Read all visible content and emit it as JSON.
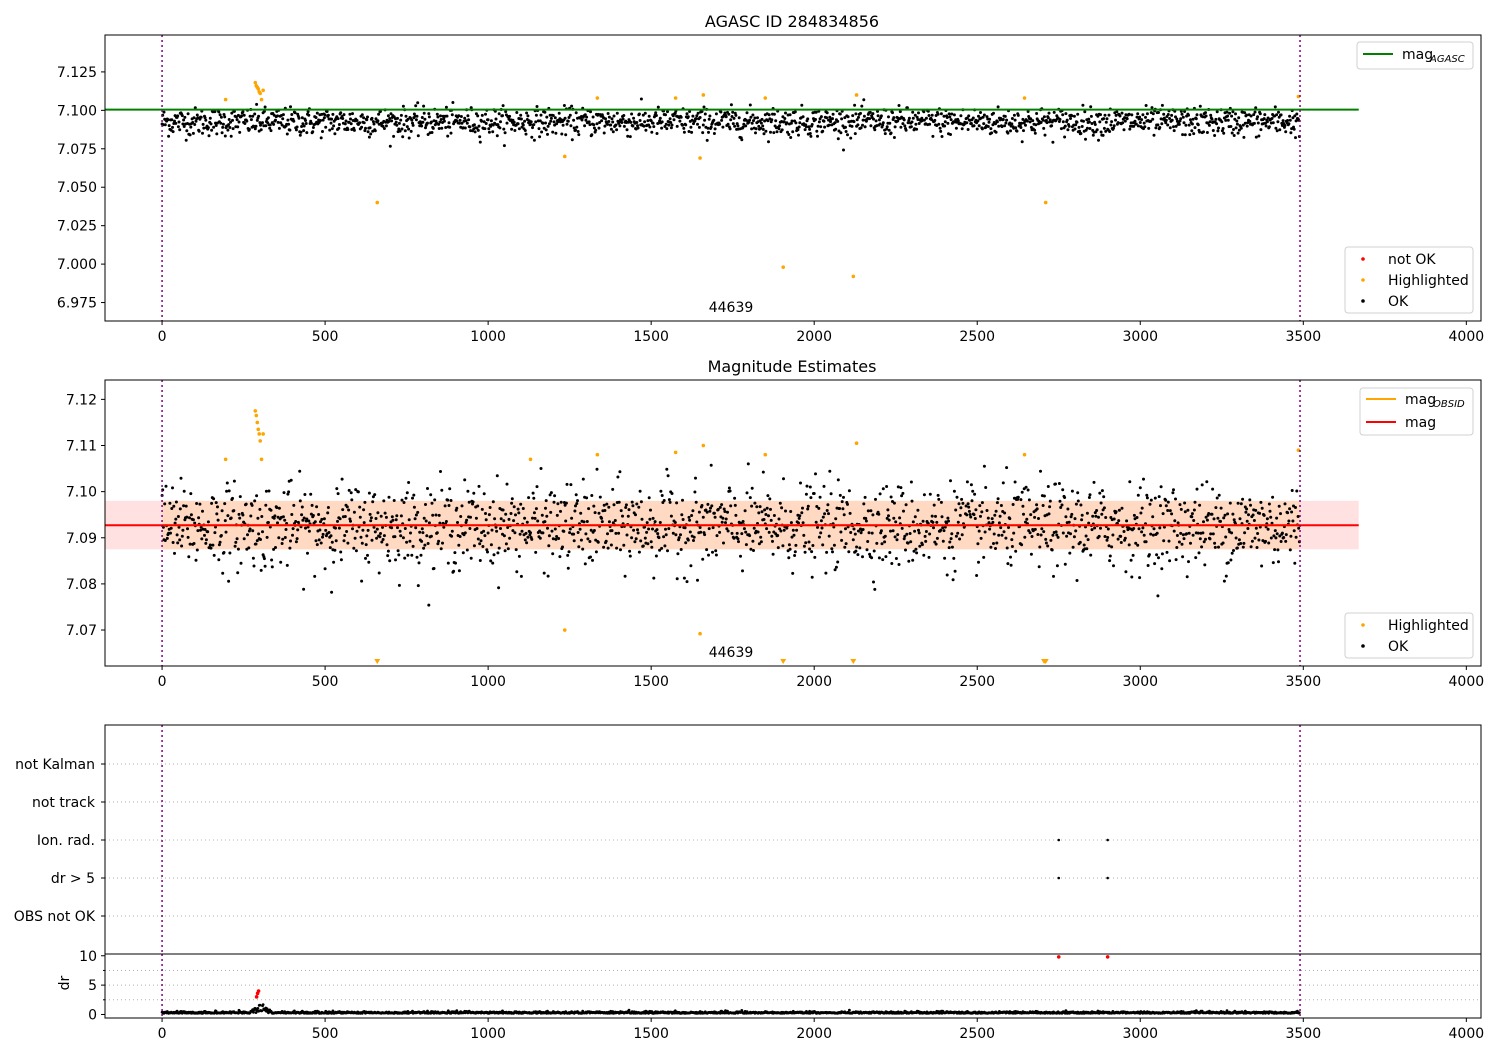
{
  "figure": {
    "title": "AGASC ID 284834856"
  },
  "chart_data": [
    {
      "type": "scatter",
      "title": "",
      "xlabel": "",
      "ylabel": "",
      "xlim": [
        -175,
        4045
      ],
      "ylim": [
        6.963,
        7.149
      ],
      "xticks": [
        0,
        500,
        1000,
        1500,
        2000,
        2500,
        3000,
        3500,
        4000
      ],
      "yticks": [
        6.975,
        7.0,
        7.025,
        7.05,
        7.075,
        7.1,
        7.125
      ],
      "ytick_labels": [
        "6.975",
        "7.000",
        "7.025",
        "7.050",
        "7.075",
        "7.100",
        "7.125"
      ],
      "vlines": [
        0,
        3490
      ],
      "vline_color": "#800080",
      "annotation": "44639",
      "annotation_x": 1740,
      "hline": {
        "name": "mag",
        "subscript": "AGASC",
        "y": 7.1005,
        "x_range": [
          0,
          3670
        ],
        "color": "#008000"
      },
      "ok_band": {
        "center": 7.0925,
        "half_width": 0.0055
      },
      "series": [
        {
          "name": "not OK",
          "color": "#ff0000",
          "points": []
        },
        {
          "name": "Highlighted",
          "color": "#ffa500",
          "points": [
            [
              195,
              7.107
            ],
            [
              286,
              7.118
            ],
            [
              289,
              7.116
            ],
            [
              292,
              7.115
            ],
            [
              295,
              7.114
            ],
            [
              298,
              7.112
            ],
            [
              301,
              7.111
            ],
            [
              305,
              7.107
            ],
            [
              310,
              7.113
            ],
            [
              660,
              7.04
            ],
            [
              1235,
              7.07
            ],
            [
              1335,
              7.108
            ],
            [
              1575,
              7.108
            ],
            [
              1650,
              7.069
            ],
            [
              1660,
              7.11
            ],
            [
              1850,
              7.108
            ],
            [
              1905,
              6.998
            ],
            [
              2120,
              6.992
            ],
            [
              2130,
              7.11
            ],
            [
              2645,
              7.108
            ],
            [
              2710,
              7.04
            ],
            [
              3485,
              7.109
            ]
          ]
        },
        {
          "name": "OK",
          "color": "#000000",
          "generated": {
            "count": 3490,
            "x_range": [
              0,
              3490
            ],
            "mean": 7.0925,
            "spread": 0.0065
          }
        }
      ],
      "legend_lines": [
        "mag",
        "AGASC"
      ],
      "legend_points": [
        "not OK",
        "Highlighted",
        "OK"
      ]
    },
    {
      "type": "scatter",
      "title": "Magnitude Estimates",
      "xlabel": "",
      "ylabel": "",
      "xlim": [
        -175,
        4045
      ],
      "ylim": [
        7.0622,
        7.1242
      ],
      "xticks": [
        0,
        500,
        1000,
        1500,
        2000,
        2500,
        3000,
        3500,
        4000
      ],
      "yticks": [
        7.07,
        7.08,
        7.09,
        7.1,
        7.11,
        7.12
      ],
      "ytick_labels": [
        "7.07",
        "7.08",
        "7.09",
        "7.10",
        "7.11",
        "7.12"
      ],
      "vlines": [
        0,
        3490
      ],
      "annotation": "44639",
      "annotation_x": 1740,
      "mag_line": {
        "name": "mag",
        "y": 7.0927,
        "x_range": [
          -175,
          3670
        ],
        "color": "#ff0000"
      },
      "obsid_line": {
        "name": "mag",
        "subscript": "OBSID",
        "y": 7.0927,
        "x_range": [
          0,
          3490
        ],
        "color": "#ffa500"
      },
      "band": {
        "y_low": 7.0875,
        "y_high": 7.098,
        "x_range": [
          -175,
          3670
        ],
        "color": "#ffc8c8"
      },
      "obs_band": {
        "y_low": 7.0875,
        "y_high": 7.098,
        "x_range": [
          0,
          3490
        ],
        "color": "#ffd5b5"
      },
      "below_axis_markers": [
        660,
        1905,
        2120,
        2705,
        2710
      ],
      "series": [
        {
          "name": "Highlighted",
          "color": "#ffa500",
          "points": [
            [
              195,
              7.107
            ],
            [
              286,
              7.1175
            ],
            [
              289,
              7.1165
            ],
            [
              292,
              7.115
            ],
            [
              295,
              7.1135
            ],
            [
              298,
              7.1125
            ],
            [
              301,
              7.111
            ],
            [
              305,
              7.107
            ],
            [
              310,
              7.1125
            ],
            [
              1130,
              7.107
            ],
            [
              1235,
              7.07
            ],
            [
              1335,
              7.108
            ],
            [
              1575,
              7.1085
            ],
            [
              1650,
              7.0692
            ],
            [
              1660,
              7.11
            ],
            [
              1850,
              7.108
            ],
            [
              2130,
              7.1105
            ],
            [
              2645,
              7.108
            ],
            [
              3485,
              7.109
            ]
          ]
        },
        {
          "name": "OK",
          "color": "#000000",
          "generated": {
            "count": 3490,
            "x_range": [
              0,
              3490
            ],
            "mean": 7.0925,
            "spread": 0.0065
          }
        }
      ],
      "legend_lines": [
        "mag",
        "OBSID",
        "mag"
      ],
      "legend_points": [
        "Highlighted",
        "OK"
      ]
    },
    {
      "type": "scatter",
      "title": "",
      "xlim": [
        -175,
        4045
      ],
      "categories": [
        "not Kalman",
        "not track",
        "Ion. rad.",
        "dr > 5",
        "OBS not OK"
      ],
      "points": [
        {
          "category": "Ion. rad.",
          "x": 2750
        },
        {
          "category": "Ion. rad.",
          "x": 2900
        },
        {
          "category": "dr > 5",
          "x": 2750
        },
        {
          "category": "dr > 5",
          "x": 2900
        }
      ],
      "vlines": [
        0,
        3490
      ]
    },
    {
      "type": "scatter",
      "title": "",
      "xlabel": "",
      "ylabel": "dr",
      "xlim": [
        -175,
        4045
      ],
      "ylim": [
        -0.6,
        10.3
      ],
      "xticks": [
        0,
        500,
        1000,
        1500,
        2000,
        2500,
        3000,
        3500,
        4000
      ],
      "yticks": [
        0,
        5,
        10
      ],
      "ytick_labels": [
        "0",
        "5",
        "10"
      ],
      "minor_yticks": [
        2.5,
        7.5
      ],
      "vlines": [
        0,
        3490
      ],
      "flagged_points": [
        [
          290,
          3.0
        ],
        [
          293,
          3.6
        ],
        [
          296,
          4.0
        ],
        [
          2750,
          9.8
        ],
        [
          2900,
          9.8
        ]
      ],
      "series": [
        {
          "name": "dr",
          "color": "#000000",
          "generated": {
            "count": 3490,
            "x_range": [
              0,
              3490
            ],
            "mean": 0.2,
            "spread": 0.15,
            "bump": {
              "x": [
                270,
                340
              ],
              "peak": 2.0
            }
          }
        }
      ]
    }
  ]
}
